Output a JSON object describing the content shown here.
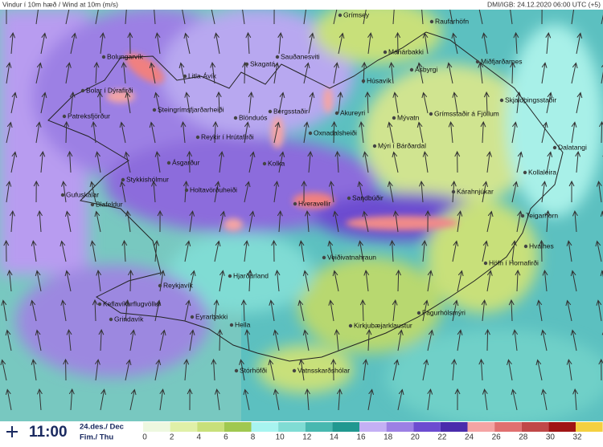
{
  "header": {
    "title": "Vindur í 10m hæð / Wind at 10m (m/s)",
    "source": "DMI/IGB: 24.12.2020 06:00 UTC (+5)"
  },
  "places": [
    "Grímsey",
    "Raufarhöfn",
    "Mánárbakki",
    "Bolungarvík",
    "Sauðanesviti",
    "Skagatá",
    "Miðfjarðarnes",
    "Ásbyrgi",
    "Litla-Ávík",
    "Húsavík",
    "Bolar í Dýrafirði",
    "Steingrímsfjarðarheiði",
    "Blönduós",
    "Bergsstaðir",
    "Akureyri",
    "Patreksfjörður",
    "Skjaldþingsstaðir",
    "Grímsstaðir á Fjöllum",
    "Mývatn",
    "Oxnadalsheiði",
    "Mýri í Bárðardal",
    "Dalatangi",
    "Reykir í Hrútafirði",
    "Ásgarður",
    "Kolka",
    "Kollaleira",
    "Stykkishólmur",
    "Kárahnjúkar",
    "Gufuskálar",
    "Holtavörðuheiði",
    "Hveravellir",
    "Sandbúðir",
    "Blafeldur",
    "Teigarhorn",
    "Hvalnes",
    "Veiðivatnahraun",
    "Höfn í Hornafirði",
    "Hjarðarland",
    "Reykjavík",
    "Keflavíkurflugvöllur",
    "Fagurhólsmýri",
    "Grindavík",
    "Eyrarbakki",
    "Hella",
    "Kirkjubæjarklaustur",
    "Stórhöfði",
    "Vatnsskarðshólar"
  ],
  "footer": {
    "time": "11:00",
    "date": "24.des./ Dec",
    "day": "Fim./ Thu"
  },
  "legend": {
    "ticks": [
      0,
      2,
      4,
      6,
      8,
      10,
      12,
      14,
      16,
      18,
      20,
      22,
      24,
      26,
      28,
      30,
      32
    ],
    "colors": [
      "#eef8e0",
      "#e0f0a8",
      "#c8e07a",
      "#a0c850",
      "#a8f4f0",
      "#80dcd4",
      "#48b8b0",
      "#209890",
      "#c4b0f4",
      "#9c80e4",
      "#6c4cd0",
      "#4a2cac",
      "#f4a4a4",
      "#e07070",
      "#c04848",
      "#a01414",
      "#f4d040"
    ]
  }
}
